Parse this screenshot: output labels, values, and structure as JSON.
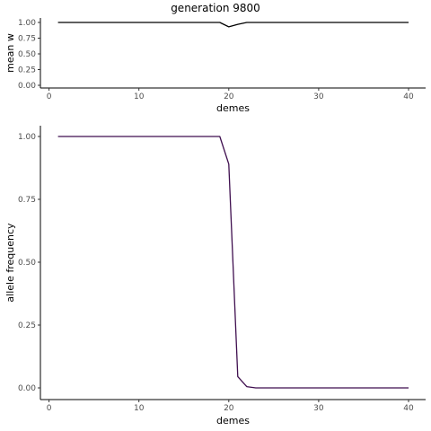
{
  "title": "generation 9800",
  "chart_data": [
    {
      "type": "line",
      "title": "generation 9800",
      "xlabel": "demes",
      "ylabel": "mean w",
      "xlim": [
        0,
        41
      ],
      "ylim": [
        0,
        1
      ],
      "x_ticks": [
        0,
        10,
        20,
        30,
        40
      ],
      "y_ticks": [
        "0.00",
        "0.25",
        "0.50",
        "0.75",
        "1.00"
      ],
      "x": [
        1,
        2,
        3,
        4,
        5,
        6,
        7,
        8,
        9,
        10,
        11,
        12,
        13,
        14,
        15,
        16,
        17,
        18,
        19,
        20,
        21,
        22,
        23,
        24,
        25,
        26,
        27,
        28,
        29,
        30,
        31,
        32,
        33,
        34,
        35,
        36,
        37,
        38,
        39,
        40
      ],
      "series": [
        {
          "color": "#000000",
          "values": [
            1,
            1,
            1,
            1,
            1,
            1,
            1,
            1,
            1,
            1,
            1,
            1,
            1,
            1,
            1,
            1,
            1,
            1,
            1,
            0.93,
            0.97,
            1,
            1,
            1,
            1,
            1,
            1,
            1,
            1,
            1,
            1,
            1,
            1,
            1,
            1,
            1,
            1,
            1,
            1,
            1
          ]
        }
      ],
      "grid": false
    },
    {
      "type": "line",
      "xlabel": "demes",
      "ylabel": "allele frequency",
      "xlim": [
        0,
        41
      ],
      "ylim": [
        0,
        1
      ],
      "x_ticks": [
        0,
        10,
        20,
        30,
        40
      ],
      "y_ticks": [
        "0.00",
        "0.25",
        "0.50",
        "0.75",
        "1.00"
      ],
      "x": [
        1,
        2,
        3,
        4,
        5,
        6,
        7,
        8,
        9,
        10,
        11,
        12,
        13,
        14,
        15,
        16,
        17,
        18,
        19,
        20,
        21,
        22,
        23,
        24,
        25,
        26,
        27,
        28,
        29,
        30,
        31,
        32,
        33,
        34,
        35,
        36,
        37,
        38,
        39,
        40
      ],
      "series": [
        {
          "color": "#3f0f4f",
          "values": [
            1,
            1,
            1,
            1,
            1,
            1,
            1,
            1,
            1,
            1,
            1,
            1,
            1,
            1,
            1,
            1,
            1,
            1,
            1,
            0.89,
            0.045,
            0.005,
            0,
            0,
            0,
            0,
            0,
            0,
            0,
            0,
            0,
            0,
            0,
            0,
            0,
            0,
            0,
            0,
            0,
            0
          ]
        }
      ],
      "grid": false
    }
  ]
}
